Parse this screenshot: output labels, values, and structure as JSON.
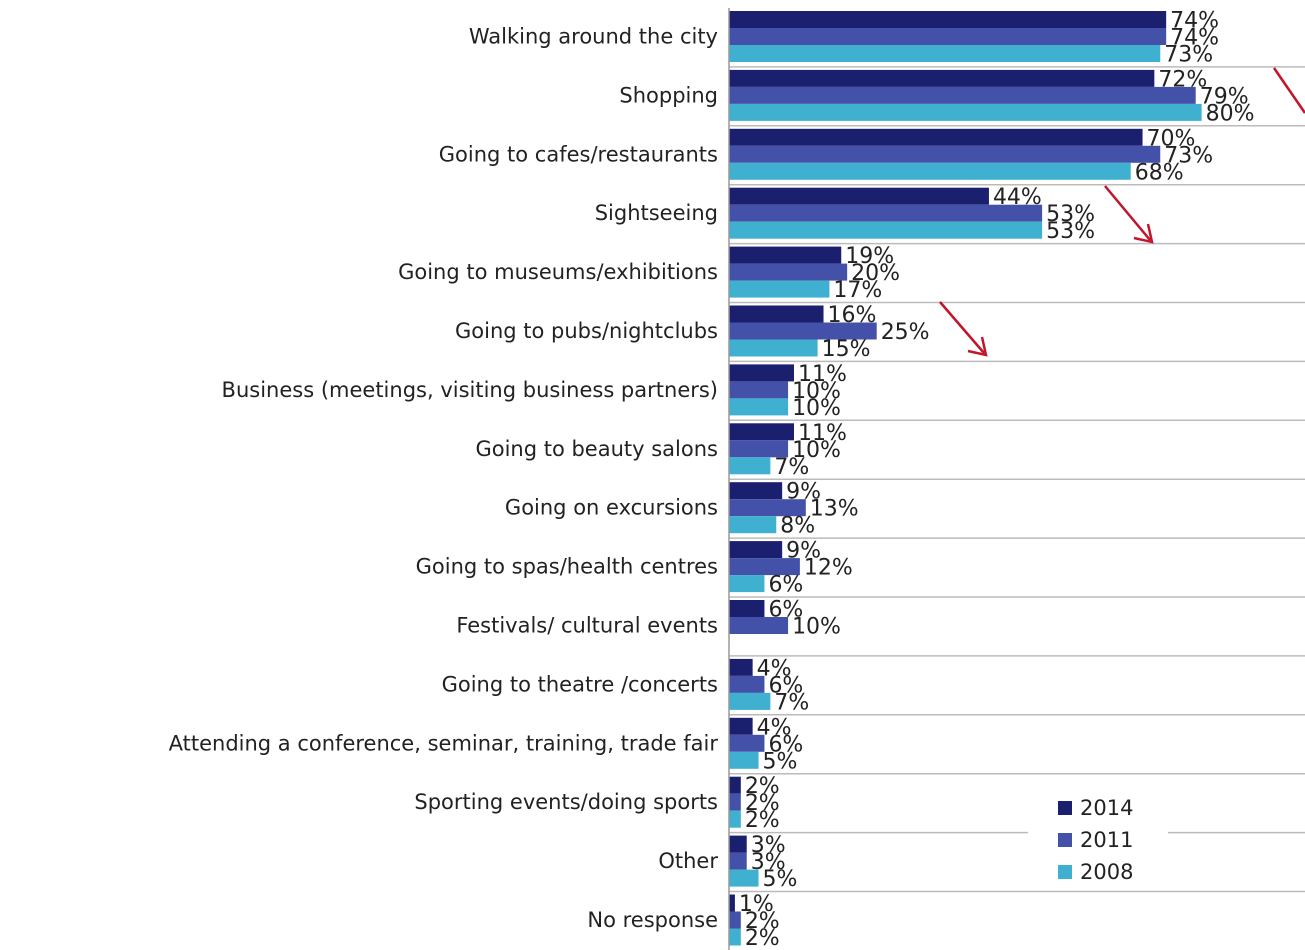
{
  "chart_data": {
    "type": "bar",
    "orientation": "horizontal",
    "categories": [
      "Walking around the city",
      "Shopping",
      "Going to cafes/restaurants",
      "Sightseeing",
      "Going to museums/exhibitions",
      "Going to pubs/nightclubs",
      "Business (meetings, visiting business partners)",
      "Going to beauty salons",
      "Going on excursions",
      "Going to spas/health centres",
      "Festivals/ cultural events",
      "Going to theatre /concerts",
      "Attending a conference, seminar, training, trade fair",
      "Sporting events/doing sports",
      "Other",
      "No response"
    ],
    "series": [
      {
        "name": "2014",
        "color": "#1a1f6e",
        "values": [
          74,
          72,
          70,
          44,
          19,
          16,
          11,
          11,
          9,
          9,
          6,
          4,
          4,
          2,
          3,
          1
        ],
        "value_labels": [
          "74%",
          "72%",
          "70%",
          "44%",
          "19%",
          "16%",
          "11%",
          "11%",
          "9%",
          "9%",
          "6%",
          "4%",
          "4%",
          "2%",
          "3%",
          "1%"
        ]
      },
      {
        "name": "2011",
        "color": "#4451a8",
        "values": [
          74,
          79,
          73,
          53,
          20,
          25,
          10,
          10,
          13,
          12,
          10,
          6,
          6,
          2,
          3,
          2
        ],
        "value_labels": [
          "74%",
          "79%",
          "73%",
          "53%",
          "20%",
          "25%",
          "10%",
          "10%",
          "13%",
          "12%",
          "10%",
          "6%",
          "6%",
          "2%",
          "3%",
          "2%"
        ]
      },
      {
        "name": "2008",
        "color": "#3fb0d0",
        "values": [
          73,
          80,
          68,
          53,
          17,
          15,
          10,
          7,
          8,
          6,
          null,
          7,
          5,
          2,
          5,
          2
        ],
        "value_labels": [
          "73%",
          "80%",
          "68%",
          "53%",
          "17%",
          "15%",
          "10%",
          "7%",
          "8%",
          "6%",
          null,
          "7%",
          "5%",
          "2%",
          "5%",
          "2%"
        ]
      }
    ],
    "xlim": [
      0,
      97.5
    ],
    "legend": "lower-right"
  }
}
